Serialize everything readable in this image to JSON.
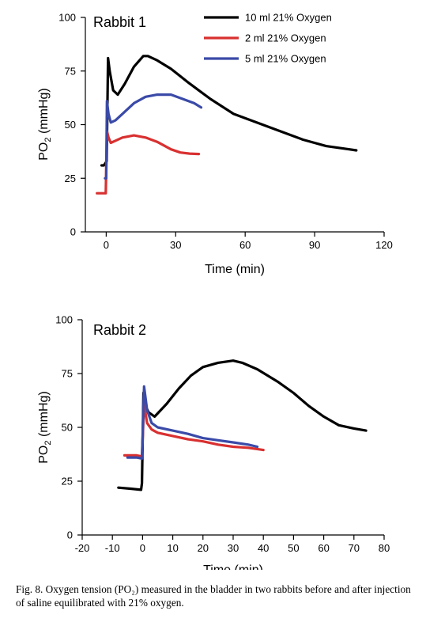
{
  "chart_data": [
    {
      "type": "line",
      "panel_label": "Rabbit 1",
      "xlabel": "Time (min)",
      "ylabel": "PO",
      "ylabel_sub": "2",
      "ylabel_unit": " (mmHg)",
      "xlim": [
        -9,
        120
      ],
      "ylim": [
        0,
        100
      ],
      "xticks": [
        0,
        30,
        60,
        90,
        120
      ],
      "yticks": [
        0,
        25,
        50,
        75,
        100
      ],
      "legend": "top-right",
      "series": [
        {
          "name": "10 ml 21% Oxygen",
          "color": "#000000",
          "x": [
            -2,
            -1,
            0.2,
            0.8,
            1.5,
            3,
            5,
            8,
            12,
            16,
            18,
            22,
            28,
            35,
            45,
            55,
            65,
            75,
            85,
            95,
            105,
            108
          ],
          "y": [
            31,
            31,
            33,
            81,
            75,
            66,
            64,
            69,
            77,
            82,
            82,
            80,
            76,
            70,
            62,
            55,
            51,
            47,
            43,
            40,
            38.5,
            38
          ]
        },
        {
          "name": "2 ml 21% Oxygen",
          "color": "#d93030",
          "x": [
            -4,
            -2,
            -0.2,
            0.3,
            1,
            2,
            4,
            7,
            12,
            17,
            22,
            28,
            32,
            36,
            40
          ],
          "y": [
            18,
            18,
            18,
            47,
            44,
            41.5,
            42.5,
            44,
            45,
            44,
            42,
            38.5,
            37,
            36.5,
            36.3
          ]
        },
        {
          "name": "5 ml 21% Oxygen",
          "color": "#3a4aa8",
          "x": [
            -0.5,
            0,
            0.3,
            1,
            2,
            4,
            7,
            12,
            17,
            22,
            28,
            33,
            38,
            41
          ],
          "y": [
            25,
            25,
            61,
            55,
            51,
            52,
            55,
            60,
            63,
            64,
            64,
            62,
            60,
            58
          ]
        }
      ]
    },
    {
      "type": "line",
      "panel_label": "Rabbit 2",
      "xlabel": "Time (min)",
      "ylabel": "PO",
      "ylabel_sub": "2",
      "ylabel_unit": " (mmHg)",
      "xlim": [
        -20,
        80
      ],
      "ylim": [
        0,
        100
      ],
      "xticks": [
        -20,
        -10,
        0,
        10,
        20,
        30,
        40,
        50,
        60,
        70,
        80
      ],
      "yticks": [
        0,
        25,
        50,
        75,
        100
      ],
      "legend": "none",
      "series": [
        {
          "name": "10 ml 21% Oxygen",
          "color": "#000000",
          "x": [
            -8,
            -4,
            -0.5,
            -0.2,
            0.3,
            1,
            2,
            4,
            8,
            12,
            16,
            20,
            25,
            30,
            33,
            38,
            45,
            50,
            55,
            60,
            65,
            70,
            74
          ],
          "y": [
            22,
            21.5,
            21,
            24,
            66,
            60,
            57,
            55,
            61,
            68,
            74,
            78,
            80,
            81,
            80,
            77,
            71,
            66,
            60,
            55,
            51,
            49.5,
            48.5
          ]
        },
        {
          "name": "2 ml 21% Oxygen",
          "color": "#d93030",
          "x": [
            -6,
            -2,
            -0.2,
            0.5,
            1.5,
            3,
            5,
            10,
            15,
            20,
            25,
            30,
            35,
            40
          ],
          "y": [
            37,
            37,
            36.5,
            61,
            52,
            49,
            47.5,
            46,
            44.5,
            43.5,
            42,
            41,
            40.5,
            39.5
          ]
        },
        {
          "name": "5 ml 21% Oxygen",
          "color": "#3a4aa8",
          "x": [
            -5,
            -2,
            -0.2,
            0.5,
            1.5,
            3,
            5,
            10,
            15,
            20,
            25,
            30,
            35,
            38
          ],
          "y": [
            36,
            36,
            35.5,
            69,
            58,
            52,
            50,
            48.5,
            47,
            45,
            44,
            43,
            42,
            41
          ]
        }
      ]
    }
  ],
  "caption": "Fig. 8. Oxygen tension (PO₂) measured in the bladder in two rabbits before and after injection of saline equilibrated with 21% oxygen."
}
